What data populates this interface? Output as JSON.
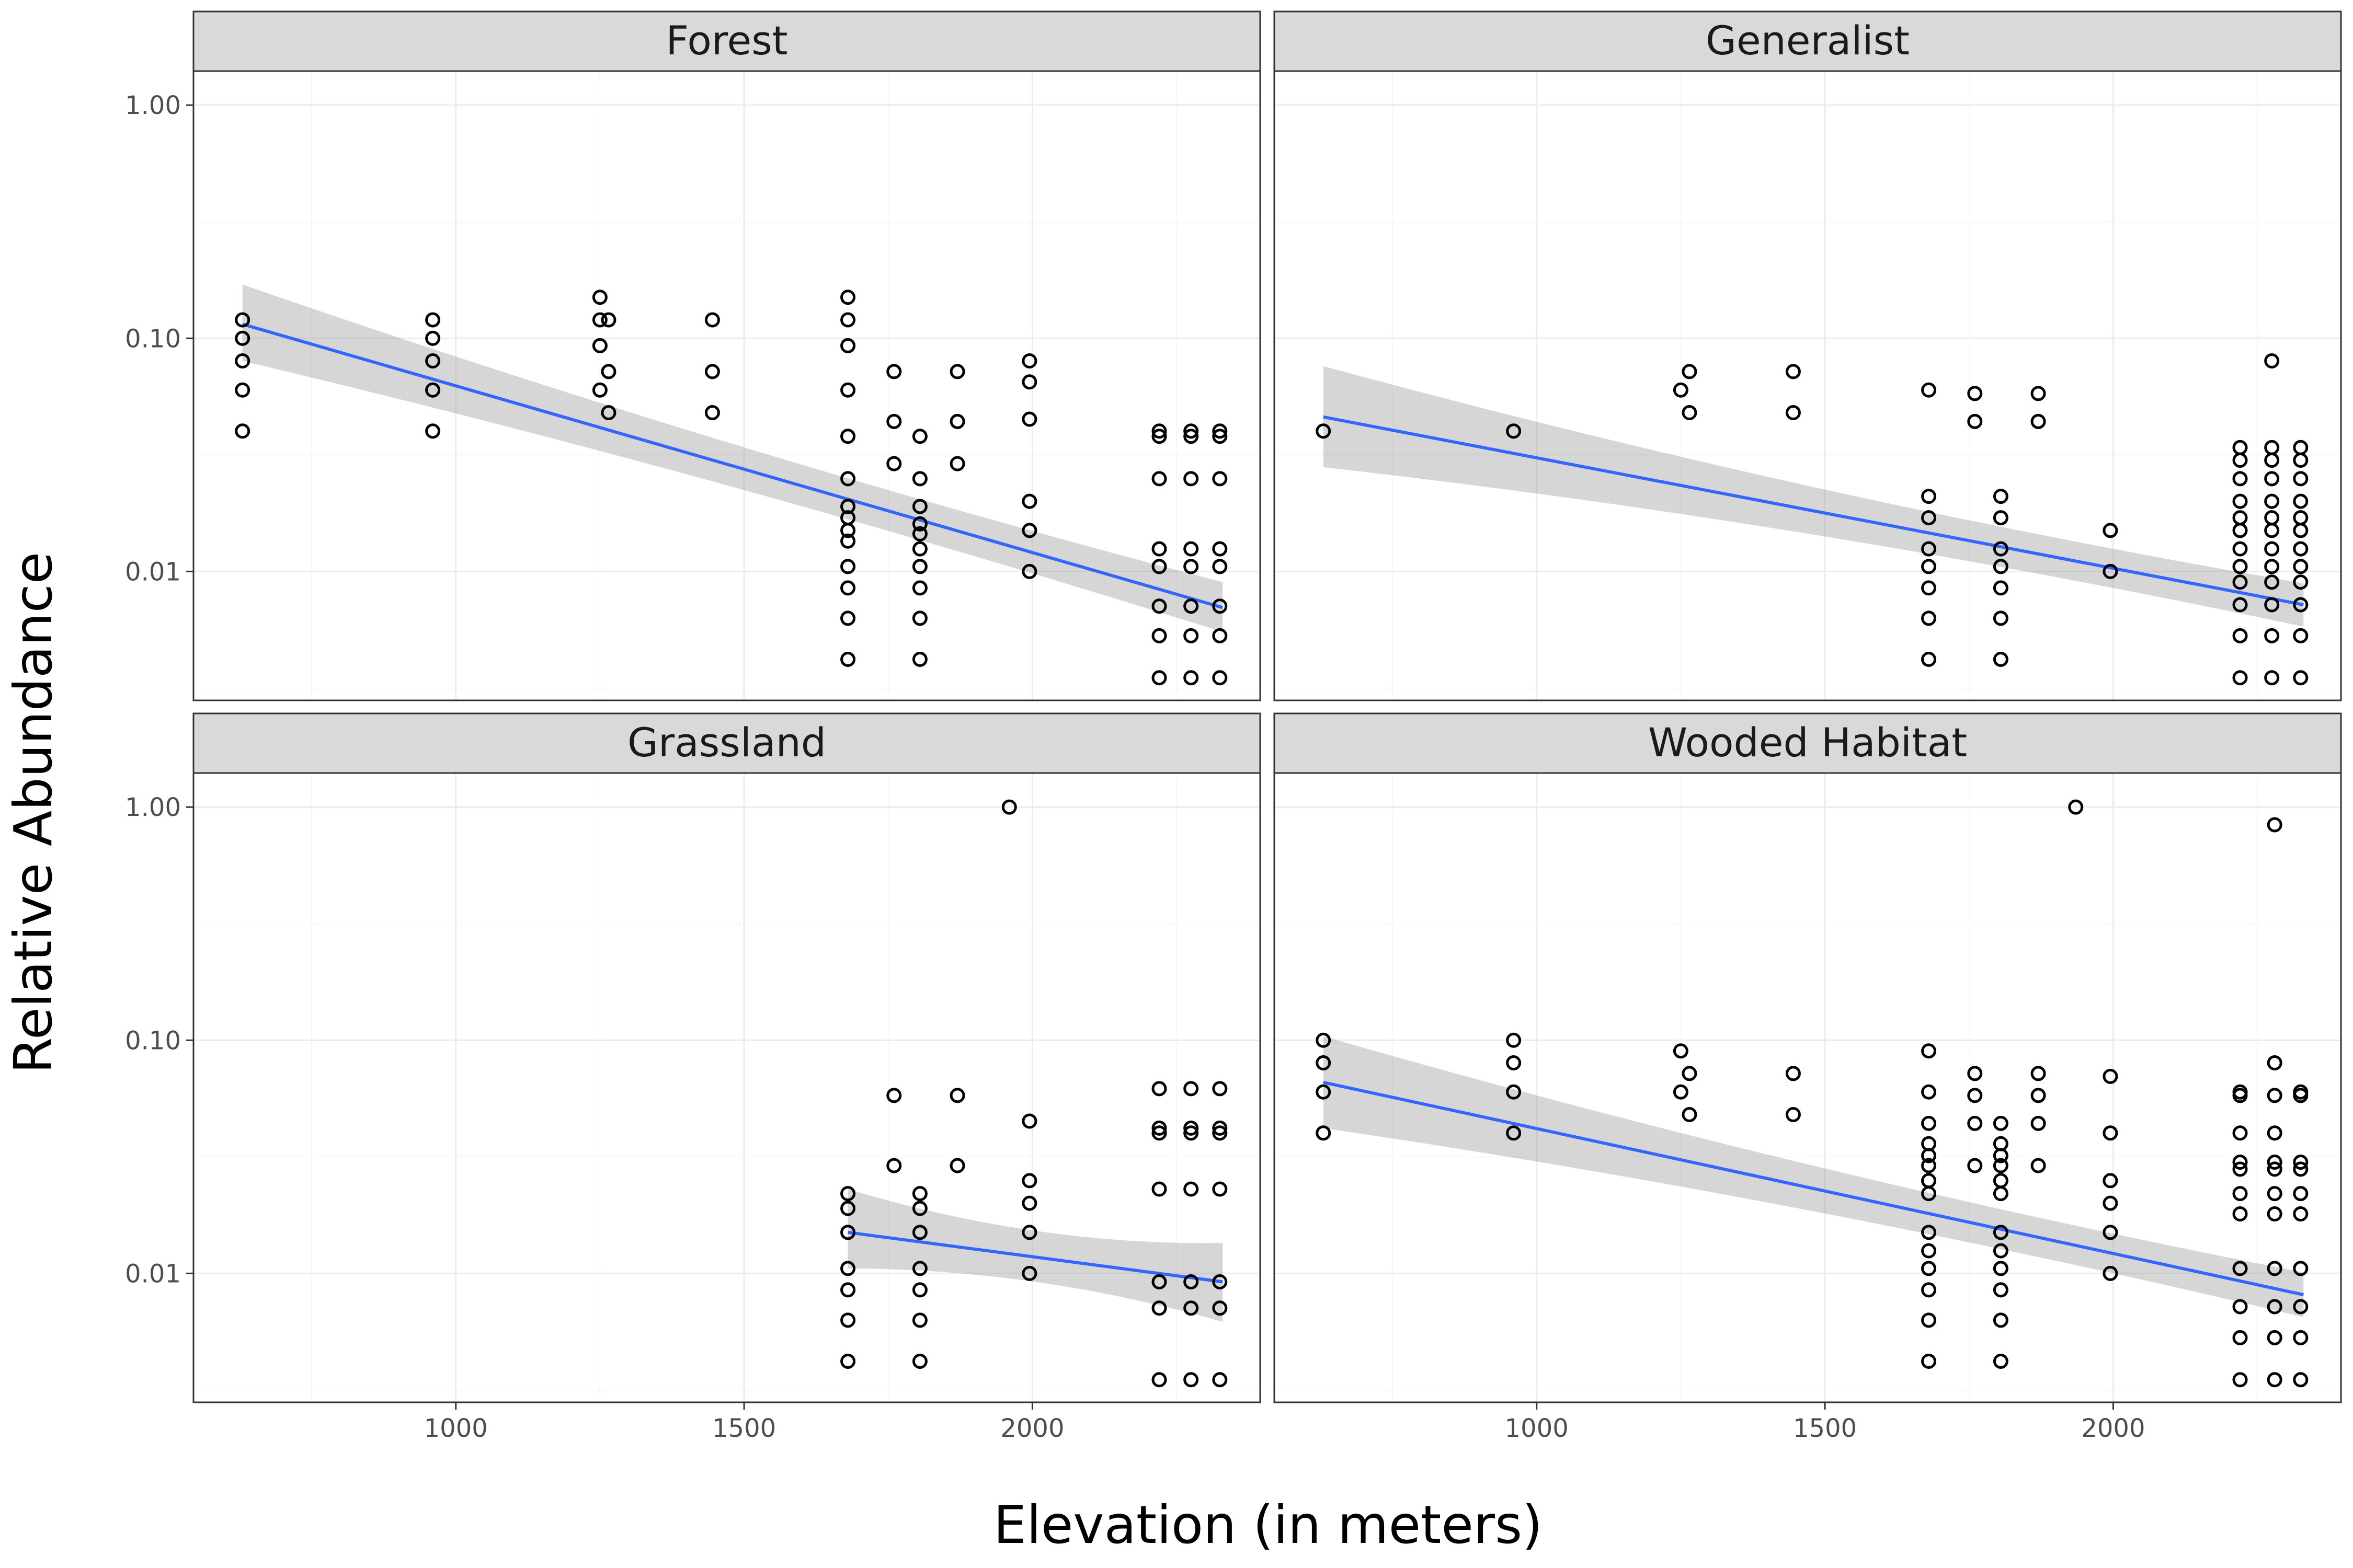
{
  "chart_data": {
    "type": "scatter",
    "xlabel": "Elevation (in meters)",
    "ylabel": "Relative Abundance",
    "x_ticks": [
      1000,
      1500,
      2000
    ],
    "y_ticks": [
      0.01,
      0.1,
      1.0
    ],
    "y_tick_labels": [
      "0.01",
      "0.10",
      "1.00"
    ],
    "y_scale": "log10",
    "xlim": [
      545,
      2395
    ],
    "ylim": [
      0.0028,
      1.4
    ],
    "grid": true,
    "colors": {
      "fit_line": "#3366ff",
      "ribbon": "#999999",
      "points": "#000000",
      "strip": "#d9d9d9"
    },
    "panels": [
      {
        "title": "Forest",
        "fit": {
          "x": [
            630,
            2330
          ],
          "y": [
            0.115,
            0.007
          ],
          "ci_low": [
            0.08,
            0.0055
          ],
          "ci_high": [
            0.17,
            0.009
          ]
        },
        "points": [
          [
            630,
            0.12
          ],
          [
            630,
            0.1
          ],
          [
            630,
            0.08
          ],
          [
            630,
            0.06
          ],
          [
            630,
            0.04
          ],
          [
            960,
            0.12
          ],
          [
            960,
            0.1
          ],
          [
            960,
            0.08
          ],
          [
            960,
            0.06
          ],
          [
            960,
            0.04
          ],
          [
            1250,
            0.15
          ],
          [
            1250,
            0.12
          ],
          [
            1250,
            0.093
          ],
          [
            1250,
            0.06
          ],
          [
            1265,
            0.12
          ],
          [
            1265,
            0.072
          ],
          [
            1265,
            0.048
          ],
          [
            1445,
            0.12
          ],
          [
            1445,
            0.072
          ],
          [
            1445,
            0.048
          ],
          [
            1680,
            0.15
          ],
          [
            1680,
            0.12
          ],
          [
            1680,
            0.093
          ],
          [
            1680,
            0.06
          ],
          [
            1680,
            0.038
          ],
          [
            1680,
            0.025
          ],
          [
            1680,
            0.019
          ],
          [
            1680,
            0.017
          ],
          [
            1680,
            0.015
          ],
          [
            1680,
            0.0135
          ],
          [
            1680,
            0.0105
          ],
          [
            1680,
            0.0085
          ],
          [
            1680,
            0.0063
          ],
          [
            1680,
            0.0042
          ],
          [
            1760,
            0.072
          ],
          [
            1760,
            0.044
          ],
          [
            1760,
            0.029
          ],
          [
            1805,
            0.038
          ],
          [
            1805,
            0.025
          ],
          [
            1805,
            0.019
          ],
          [
            1805,
            0.016
          ],
          [
            1805,
            0.0145
          ],
          [
            1805,
            0.0125
          ],
          [
            1805,
            0.0105
          ],
          [
            1805,
            0.0085
          ],
          [
            1805,
            0.0063
          ],
          [
            1805,
            0.0042
          ],
          [
            1870,
            0.072
          ],
          [
            1870,
            0.044
          ],
          [
            1870,
            0.029
          ],
          [
            1995,
            0.08
          ],
          [
            1995,
            0.065
          ],
          [
            1995,
            0.045
          ],
          [
            1995,
            0.02
          ],
          [
            1995,
            0.015
          ],
          [
            1995,
            0.01
          ],
          [
            2220,
            0.04
          ],
          [
            2220,
            0.038
          ],
          [
            2220,
            0.025
          ],
          [
            2220,
            0.0125
          ],
          [
            2220,
            0.0105
          ],
          [
            2220,
            0.0071
          ],
          [
            2220,
            0.0053
          ],
          [
            2220,
            0.0035
          ],
          [
            2275,
            0.04
          ],
          [
            2275,
            0.038
          ],
          [
            2275,
            0.025
          ],
          [
            2275,
            0.0125
          ],
          [
            2275,
            0.0105
          ],
          [
            2275,
            0.0071
          ],
          [
            2275,
            0.0053
          ],
          [
            2275,
            0.0035
          ],
          [
            2325,
            0.04
          ],
          [
            2325,
            0.038
          ],
          [
            2325,
            0.025
          ],
          [
            2325,
            0.0125
          ],
          [
            2325,
            0.0105
          ],
          [
            2325,
            0.0071
          ],
          [
            2325,
            0.0053
          ],
          [
            2325,
            0.0035
          ]
        ]
      },
      {
        "title": "Generalist",
        "fit": {
          "x": [
            630,
            2330
          ],
          "y": [
            0.046,
            0.0072
          ],
          "ci_low": [
            0.028,
            0.0058
          ],
          "ci_high": [
            0.076,
            0.0089
          ]
        },
        "points": [
          [
            630,
            0.04
          ],
          [
            960,
            0.04
          ],
          [
            1250,
            0.06
          ],
          [
            1265,
            0.072
          ],
          [
            1265,
            0.048
          ],
          [
            1445,
            0.072
          ],
          [
            1445,
            0.048
          ],
          [
            1680,
            0.06
          ],
          [
            1680,
            0.021
          ],
          [
            1680,
            0.017
          ],
          [
            1680,
            0.0125
          ],
          [
            1680,
            0.0105
          ],
          [
            1680,
            0.0085
          ],
          [
            1680,
            0.0063
          ],
          [
            1680,
            0.0042
          ],
          [
            1760,
            0.058
          ],
          [
            1760,
            0.044
          ],
          [
            1805,
            0.021
          ],
          [
            1805,
            0.017
          ],
          [
            1805,
            0.0125
          ],
          [
            1805,
            0.0105
          ],
          [
            1805,
            0.0085
          ],
          [
            1805,
            0.0063
          ],
          [
            1805,
            0.0042
          ],
          [
            1870,
            0.058
          ],
          [
            1870,
            0.044
          ],
          [
            1995,
            0.015
          ],
          [
            1995,
            0.01
          ],
          [
            2220,
            0.034
          ],
          [
            2220,
            0.03
          ],
          [
            2220,
            0.025
          ],
          [
            2220,
            0.02
          ],
          [
            2220,
            0.017
          ],
          [
            2220,
            0.015
          ],
          [
            2220,
            0.0125
          ],
          [
            2220,
            0.0105
          ],
          [
            2220,
            0.009
          ],
          [
            2220,
            0.0072
          ],
          [
            2220,
            0.0053
          ],
          [
            2220,
            0.0035
          ],
          [
            2275,
            0.08
          ],
          [
            2275,
            0.034
          ],
          [
            2275,
            0.03
          ],
          [
            2275,
            0.025
          ],
          [
            2275,
            0.02
          ],
          [
            2275,
            0.017
          ],
          [
            2275,
            0.015
          ],
          [
            2275,
            0.0125
          ],
          [
            2275,
            0.0105
          ],
          [
            2275,
            0.009
          ],
          [
            2275,
            0.0072
          ],
          [
            2275,
            0.0053
          ],
          [
            2275,
            0.0035
          ],
          [
            2325,
            0.034
          ],
          [
            2325,
            0.03
          ],
          [
            2325,
            0.025
          ],
          [
            2325,
            0.02
          ],
          [
            2325,
            0.017
          ],
          [
            2325,
            0.015
          ],
          [
            2325,
            0.0125
          ],
          [
            2325,
            0.0105
          ],
          [
            2325,
            0.009
          ],
          [
            2325,
            0.0072
          ],
          [
            2325,
            0.0053
          ],
          [
            2325,
            0.0035
          ]
        ]
      },
      {
        "title": "Grassland",
        "fit": {
          "x": [
            1680,
            2330
          ],
          "y": [
            0.015,
            0.0092
          ],
          "ci_low": [
            0.0105,
            0.0062
          ],
          "ci_high": [
            0.023,
            0.0135
          ]
        },
        "points": [
          [
            1680,
            0.022
          ],
          [
            1680,
            0.019
          ],
          [
            1680,
            0.015
          ],
          [
            1680,
            0.0105
          ],
          [
            1680,
            0.0085
          ],
          [
            1680,
            0.0063
          ],
          [
            1680,
            0.0042
          ],
          [
            1760,
            0.058
          ],
          [
            1760,
            0.029
          ],
          [
            1805,
            0.022
          ],
          [
            1805,
            0.019
          ],
          [
            1805,
            0.015
          ],
          [
            1805,
            0.0105
          ],
          [
            1805,
            0.0085
          ],
          [
            1805,
            0.0063
          ],
          [
            1805,
            0.0042
          ],
          [
            1870,
            0.058
          ],
          [
            1870,
            0.029
          ],
          [
            1960,
            1.0
          ],
          [
            1995,
            0.045
          ],
          [
            1995,
            0.025
          ],
          [
            1995,
            0.02
          ],
          [
            1995,
            0.015
          ],
          [
            1995,
            0.01
          ],
          [
            2220,
            0.062
          ],
          [
            2220,
            0.042
          ],
          [
            2220,
            0.04
          ],
          [
            2220,
            0.023
          ],
          [
            2220,
            0.0092
          ],
          [
            2220,
            0.0071
          ],
          [
            2220,
            0.0035
          ],
          [
            2275,
            0.062
          ],
          [
            2275,
            0.042
          ],
          [
            2275,
            0.04
          ],
          [
            2275,
            0.023
          ],
          [
            2275,
            0.0092
          ],
          [
            2275,
            0.0071
          ],
          [
            2275,
            0.0035
          ],
          [
            2325,
            0.062
          ],
          [
            2325,
            0.042
          ],
          [
            2325,
            0.04
          ],
          [
            2325,
            0.023
          ],
          [
            2325,
            0.0092
          ],
          [
            2325,
            0.0071
          ],
          [
            2325,
            0.0035
          ]
        ]
      },
      {
        "title": "Wooded Habitat",
        "fit": {
          "x": [
            630,
            2330
          ],
          "y": [
            0.066,
            0.0081
          ],
          "ci_low": [
            0.042,
            0.0065
          ],
          "ci_high": [
            0.104,
            0.0101
          ]
        },
        "points": [
          [
            630,
            0.1
          ],
          [
            630,
            0.08
          ],
          [
            630,
            0.06
          ],
          [
            630,
            0.04
          ],
          [
            960,
            0.1
          ],
          [
            960,
            0.08
          ],
          [
            960,
            0.06
          ],
          [
            960,
            0.04
          ],
          [
            1250,
            0.09
          ],
          [
            1250,
            0.06
          ],
          [
            1265,
            0.072
          ],
          [
            1265,
            0.048
          ],
          [
            1445,
            0.072
          ],
          [
            1445,
            0.048
          ],
          [
            1680,
            0.09
          ],
          [
            1680,
            0.06
          ],
          [
            1680,
            0.044
          ],
          [
            1680,
            0.036
          ],
          [
            1680,
            0.032
          ],
          [
            1680,
            0.029
          ],
          [
            1680,
            0.025
          ],
          [
            1680,
            0.022
          ],
          [
            1680,
            0.015
          ],
          [
            1680,
            0.0125
          ],
          [
            1680,
            0.0105
          ],
          [
            1680,
            0.0085
          ],
          [
            1680,
            0.0063
          ],
          [
            1680,
            0.0042
          ],
          [
            1760,
            0.072
          ],
          [
            1760,
            0.058
          ],
          [
            1760,
            0.044
          ],
          [
            1760,
            0.029
          ],
          [
            1805,
            0.044
          ],
          [
            1805,
            0.036
          ],
          [
            1805,
            0.032
          ],
          [
            1805,
            0.029
          ],
          [
            1805,
            0.025
          ],
          [
            1805,
            0.022
          ],
          [
            1805,
            0.015
          ],
          [
            1805,
            0.0125
          ],
          [
            1805,
            0.0105
          ],
          [
            1805,
            0.0085
          ],
          [
            1805,
            0.0063
          ],
          [
            1805,
            0.0042
          ],
          [
            1870,
            0.072
          ],
          [
            1870,
            0.058
          ],
          [
            1870,
            0.044
          ],
          [
            1870,
            0.029
          ],
          [
            1935,
            1.0
          ],
          [
            1995,
            0.07
          ],
          [
            1995,
            0.04
          ],
          [
            1995,
            0.025
          ],
          [
            1995,
            0.02
          ],
          [
            1995,
            0.015
          ],
          [
            1995,
            0.01
          ],
          [
            2220,
            0.06
          ],
          [
            2220,
            0.058
          ],
          [
            2220,
            0.04
          ],
          [
            2220,
            0.03
          ],
          [
            2220,
            0.028
          ],
          [
            2220,
            0.022
          ],
          [
            2220,
            0.018
          ],
          [
            2220,
            0.0105
          ],
          [
            2220,
            0.0072
          ],
          [
            2220,
            0.0053
          ],
          [
            2220,
            0.0035
          ],
          [
            2280,
            0.84
          ],
          [
            2280,
            0.08
          ],
          [
            2280,
            0.058
          ],
          [
            2280,
            0.04
          ],
          [
            2280,
            0.03
          ],
          [
            2280,
            0.028
          ],
          [
            2280,
            0.022
          ],
          [
            2280,
            0.018
          ],
          [
            2280,
            0.0105
          ],
          [
            2280,
            0.0072
          ],
          [
            2280,
            0.0053
          ],
          [
            2280,
            0.0035
          ],
          [
            2325,
            0.06
          ],
          [
            2325,
            0.058
          ],
          [
            2325,
            0.03
          ],
          [
            2325,
            0.028
          ],
          [
            2325,
            0.022
          ],
          [
            2325,
            0.018
          ],
          [
            2325,
            0.0105
          ],
          [
            2325,
            0.0072
          ],
          [
            2325,
            0.0053
          ],
          [
            2325,
            0.0035
          ]
        ]
      }
    ]
  }
}
